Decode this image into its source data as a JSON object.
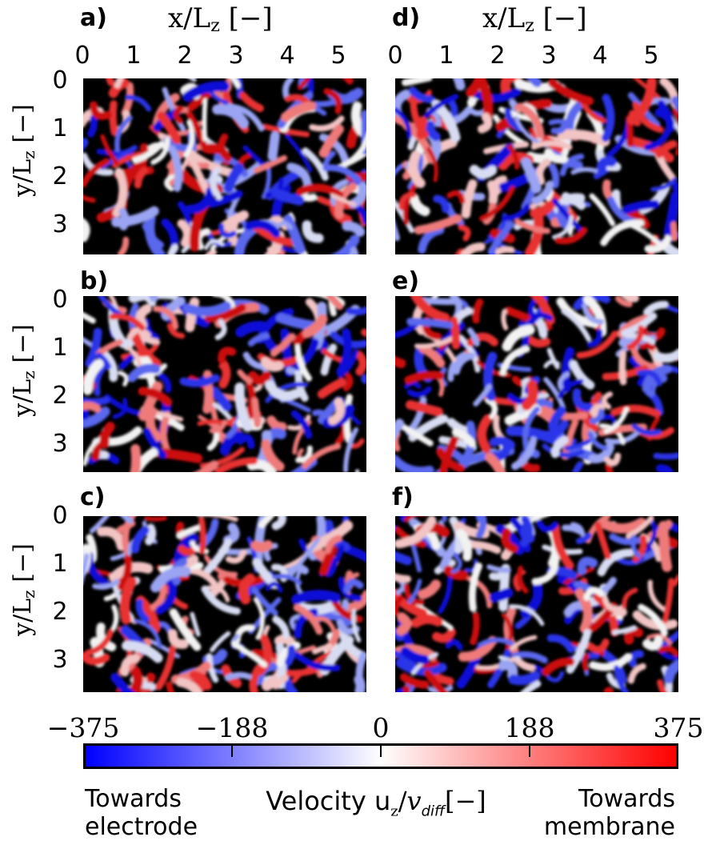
{
  "figure": {
    "x_axis_title": "x/L",
    "x_axis_sub": "z",
    "x_axis_unit": "[−]",
    "y_axis_title": "y/L",
    "y_axis_sub": "z",
    "y_axis_unit": "[−]",
    "x_ticks": [
      "0",
      "1",
      "2",
      "3",
      "4",
      "5"
    ],
    "y_ticks": [
      "0",
      "1",
      "2",
      "3"
    ]
  },
  "panels": [
    {
      "label": "a)"
    },
    {
      "label": "b)"
    },
    {
      "label": "c)"
    },
    {
      "label": "d)"
    },
    {
      "label": "e)"
    },
    {
      "label": "f)"
    }
  ],
  "colorbar": {
    "ticks": [
      "−375",
      "−188",
      "0",
      "188",
      "375"
    ],
    "label_prefix": "Velocity u",
    "label_sub": "z",
    "label_slash": "/",
    "label_v": "v",
    "label_v_sub": "diff",
    "label_unit": "[−]",
    "left_note_line1": "Towards",
    "left_note_line2": "electrode",
    "right_note_line1": "Towards",
    "right_note_line2": "membrane",
    "colors": {
      "min": "#0000ff",
      "mid": "#ffffff",
      "max": "#ff0000",
      "empty": "#000000"
    }
  }
}
